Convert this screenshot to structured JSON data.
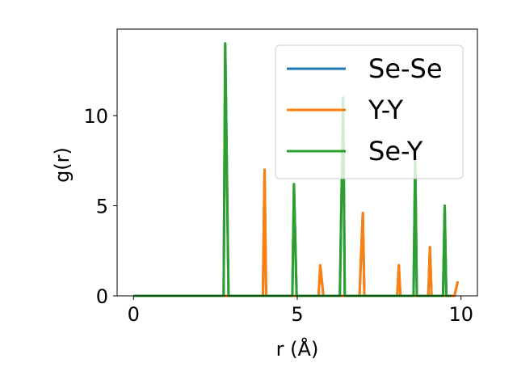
{
  "chart_data": {
    "type": "line",
    "xlabel": "r (Å)",
    "ylabel": "g(r)",
    "xlim": [
      -0.5,
      10.5
    ],
    "ylim": [
      0,
      14.8
    ],
    "xticks": [
      0,
      5,
      10
    ],
    "yticks": [
      0,
      5,
      10
    ],
    "grid": false,
    "legend_position": "top-right",
    "series": [
      {
        "name": "Se-Se",
        "color": "#1f77b4",
        "points": [
          [
            0.0,
            0
          ],
          [
            2.75,
            0
          ],
          [
            2.8,
            14.0
          ],
          [
            2.9,
            0
          ],
          [
            3.95,
            0
          ],
          [
            4.0,
            7.0
          ],
          [
            4.05,
            0
          ],
          [
            4.85,
            0
          ],
          [
            4.9,
            6.2
          ],
          [
            4.98,
            0
          ],
          [
            5.65,
            0
          ],
          [
            5.7,
            1.7
          ],
          [
            5.8,
            0
          ],
          [
            6.3,
            0
          ],
          [
            6.4,
            11.0
          ],
          [
            6.45,
            0
          ],
          [
            6.9,
            0
          ],
          [
            7.0,
            4.6
          ],
          [
            7.05,
            0
          ],
          [
            8.05,
            0
          ],
          [
            8.1,
            1.7
          ],
          [
            8.15,
            0
          ],
          [
            8.55,
            0
          ],
          [
            8.6,
            7.8
          ],
          [
            8.65,
            0
          ],
          [
            9.0,
            0
          ],
          [
            9.05,
            2.7
          ],
          [
            9.1,
            0
          ],
          [
            9.45,
            0
          ],
          [
            9.5,
            5.0
          ],
          [
            9.55,
            0
          ],
          [
            9.8,
            0
          ],
          [
            9.9,
            0.8
          ]
        ]
      },
      {
        "name": "Y-Y",
        "color": "#ff7f0e",
        "points": [
          [
            0.0,
            0
          ],
          [
            3.95,
            0
          ],
          [
            4.0,
            7.0
          ],
          [
            4.05,
            0
          ],
          [
            5.65,
            0
          ],
          [
            5.7,
            1.7
          ],
          [
            5.8,
            0
          ],
          [
            6.9,
            0
          ],
          [
            7.0,
            4.6
          ],
          [
            7.05,
            0
          ],
          [
            8.05,
            0
          ],
          [
            8.1,
            1.7
          ],
          [
            8.15,
            0
          ],
          [
            9.0,
            0
          ],
          [
            9.05,
            2.7
          ],
          [
            9.1,
            0
          ],
          [
            9.8,
            0
          ],
          [
            9.9,
            0.8
          ]
        ]
      },
      {
        "name": "Se-Y",
        "color": "#2ca02c",
        "points": [
          [
            0.0,
            0
          ],
          [
            2.75,
            0
          ],
          [
            2.8,
            14.0
          ],
          [
            2.9,
            0
          ],
          [
            4.85,
            0
          ],
          [
            4.9,
            6.2
          ],
          [
            4.98,
            0
          ],
          [
            6.3,
            0
          ],
          [
            6.4,
            11.0
          ],
          [
            6.45,
            0
          ],
          [
            8.55,
            0
          ],
          [
            8.6,
            7.8
          ],
          [
            8.65,
            0
          ],
          [
            9.45,
            0
          ],
          [
            9.5,
            5.0
          ],
          [
            9.55,
            0
          ],
          [
            9.7,
            0
          ]
        ]
      }
    ]
  }
}
